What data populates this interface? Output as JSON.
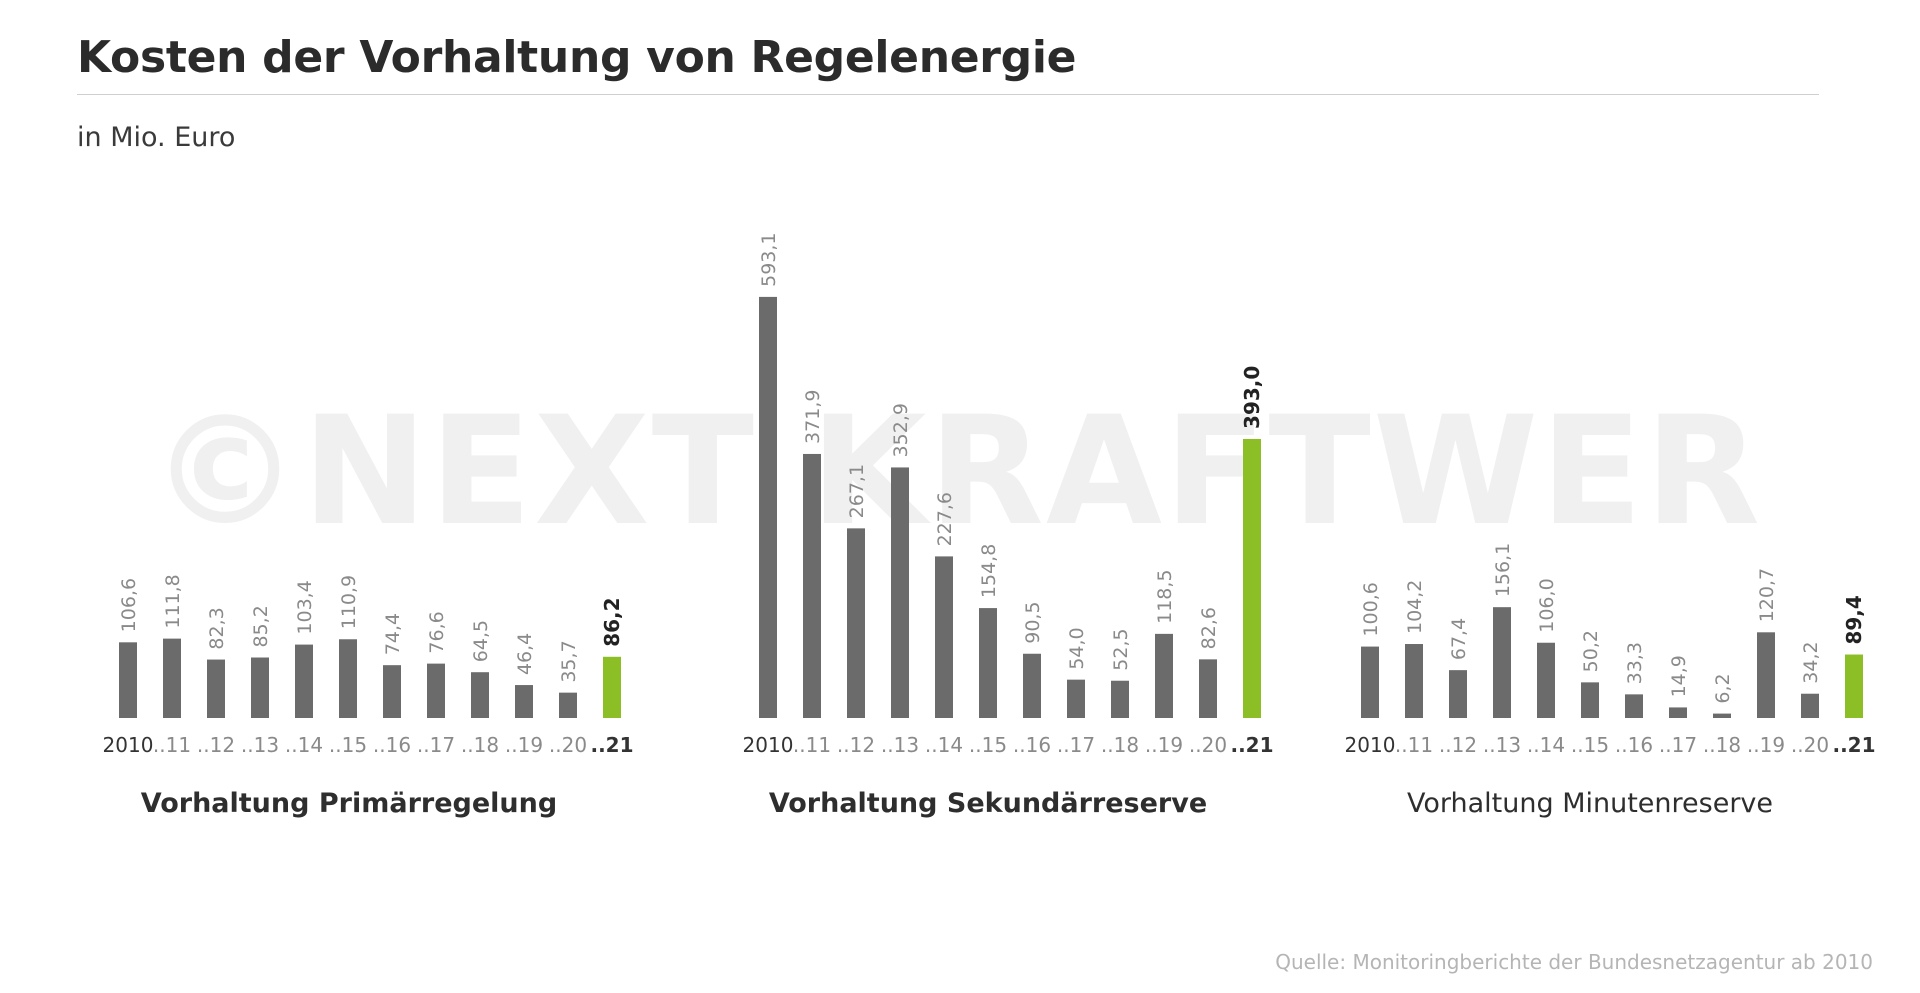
{
  "header": {
    "title": "Kosten der Vorhaltung von Regelenergie",
    "subtitle": "in Mio. Euro"
  },
  "watermark": "©NEXT KRAFTWERKE",
  "source": "Quelle: Monitoringberichte der Bundesnetzagentur ab 2010",
  "colors": {
    "bar": "#6b6b6b",
    "highlight": "#8cbf26",
    "label": "#8a8a8a",
    "highlight_label": "#222222",
    "axis_label": "#8a8a8a",
    "axis_label_strong": "#333333"
  },
  "chart_data": [
    {
      "type": "bar",
      "title": "Vorhaltung Primärregelung",
      "categories": [
        "2010",
        "..11",
        "..12",
        "..13",
        "..14",
        "..15",
        "..16",
        "..17",
        "..18",
        "..19",
        "..20",
        "..21"
      ],
      "value_labels": [
        "106,6",
        "111,8",
        "82,3",
        "85,2",
        "103,4",
        "110,9",
        "74,4",
        "76,6",
        "64,5",
        "46,4",
        "35,7",
        "86,2"
      ],
      "values": [
        106.6,
        111.8,
        82.3,
        85.2,
        103.4,
        110.9,
        74.4,
        76.6,
        64.5,
        46.4,
        35.7,
        86.2
      ],
      "highlight_index": 11
    },
    {
      "type": "bar",
      "title": "Vorhaltung Sekundärreserve",
      "categories": [
        "2010",
        "..11",
        "..12",
        "..13",
        "..14",
        "..15",
        "..16",
        "..17",
        "..18",
        "..19",
        "..20",
        "..21"
      ],
      "value_labels": [
        "593,1",
        "371,9",
        "267,1",
        "352,9",
        "227,6",
        "154,8",
        "90,5",
        "54,0",
        "52,5",
        "118,5",
        "82,6",
        "393,0"
      ],
      "values": [
        593.1,
        371.9,
        267.1,
        352.9,
        227.6,
        154.8,
        90.5,
        54.0,
        52.5,
        118.5,
        82.6,
        393.0
      ],
      "highlight_index": 11
    },
    {
      "type": "bar",
      "title": "Vorhaltung Minutenreserve",
      "categories": [
        "2010",
        "..11",
        "..12",
        "..13",
        "..14",
        "..15",
        "..16",
        "..17",
        "..18",
        "..19",
        "..20",
        "..21"
      ],
      "value_labels": [
        "100,6",
        "104,2",
        "67,4",
        "156,1",
        "106,0",
        "50,2",
        "33,3",
        "14,9",
        "6,2",
        "120,7",
        "34,2",
        "89,4"
      ],
      "values": [
        100.6,
        104.2,
        67.4,
        156.1,
        106.0,
        50.2,
        33.3,
        14.9,
        6.2,
        120.7,
        34.2,
        89.4
      ],
      "highlight_index": 11
    }
  ]
}
